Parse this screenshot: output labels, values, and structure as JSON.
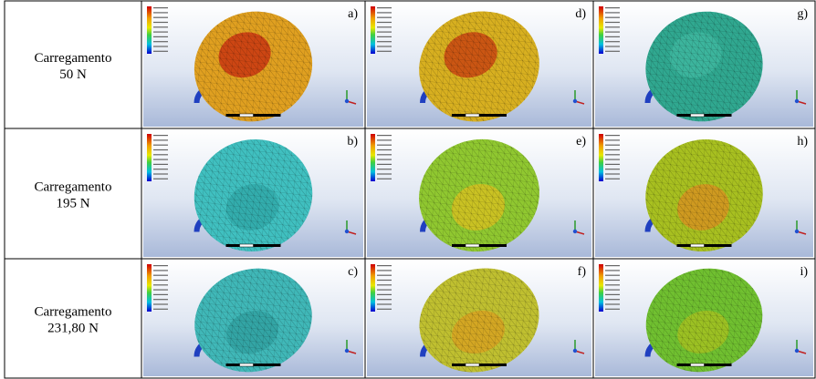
{
  "rows": [
    {
      "label": [
        "Carregamento",
        "50 N"
      ],
      "panels": [
        "a)",
        "d)",
        "g)"
      ]
    },
    {
      "label": [
        "Carregamento",
        "195 N"
      ],
      "panels": [
        "b)",
        "e)",
        "h)"
      ]
    },
    {
      "label": [
        "Carregamento",
        "231,80 N"
      ],
      "panels": [
        "c)",
        "f)",
        "i)"
      ]
    }
  ]
}
